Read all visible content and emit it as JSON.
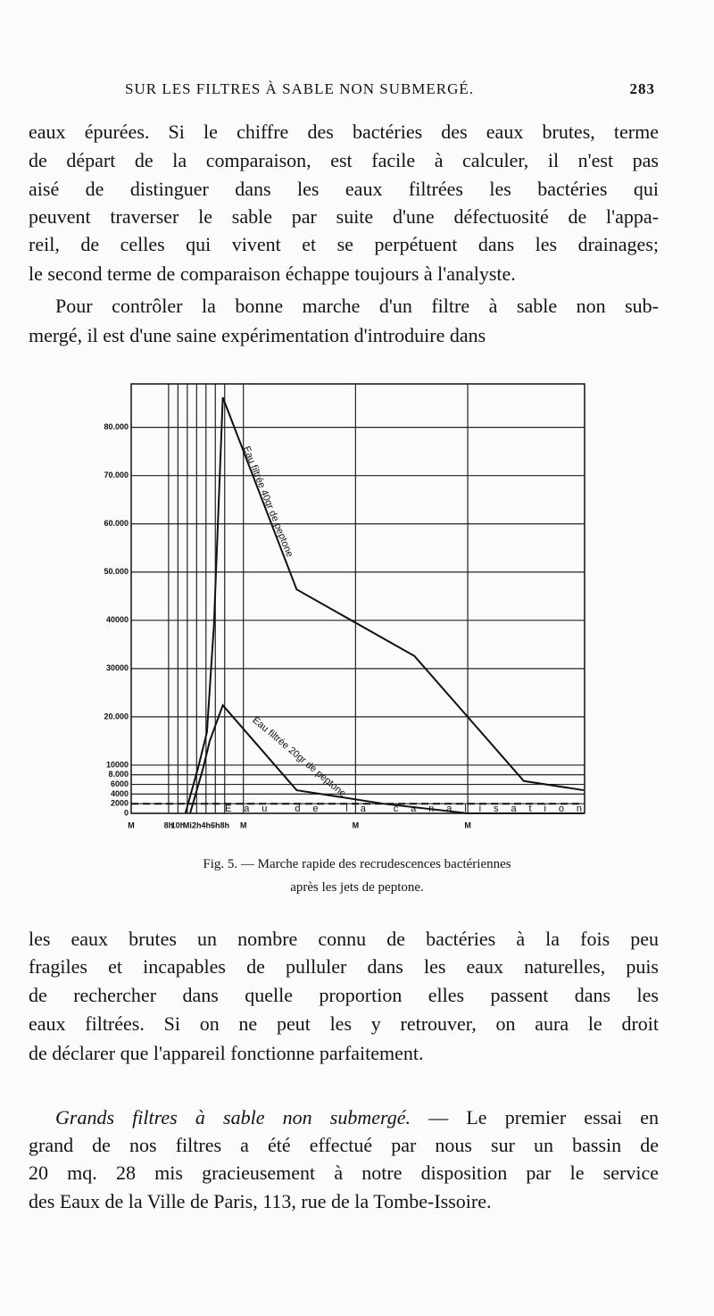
{
  "header": {
    "running_title": "SUR LES FILTRES À SABLE NON SUBMERGÉ.",
    "page_number": "283"
  },
  "paragraph_1": {
    "lines": [
      "eaux épurées. Si le chiffre des bactéries des eaux brutes, terme",
      "de départ de la comparaison, est facile à calculer, il n'est pas",
      "aisé de distinguer dans les eaux filtrées les bactéries qui",
      "peuvent traverser le sable par suite d'une défectuosité de l'appa-",
      "reil, de celles qui vivent et se perpétuent dans les drainages;",
      "le second terme de comparaison échappe toujours à l'analyste."
    ]
  },
  "paragraph_2": {
    "lines": [
      "Pour contrôler la bonne marche d'un filtre à sable non sub-",
      "mergé, il est d'une saine expérimentation d'introduire dans"
    ]
  },
  "chart_data": {
    "type": "line",
    "xlim": [
      0,
      97
    ],
    "xticks": [
      {
        "value": 0,
        "label": "M"
      },
      {
        "value": 8,
        "label": "8h"
      },
      {
        "value": 10,
        "label": "10h"
      },
      {
        "value": 12,
        "label": "Mi"
      },
      {
        "value": 14,
        "label": "2h"
      },
      {
        "value": 16,
        "label": "4h"
      },
      {
        "value": 18,
        "label": "6h"
      },
      {
        "value": 20,
        "label": "8h"
      },
      {
        "value": 24,
        "label": "M"
      },
      {
        "value": 48,
        "label": "M"
      },
      {
        "value": 72,
        "label": "M"
      }
    ],
    "ylim": [
      0,
      89000
    ],
    "yticks": [
      0,
      2000,
      4000,
      6000,
      {
        "value": 8000,
        "label": "8.000"
      },
      10000,
      {
        "value": 20000,
        "label": "20.000"
      },
      30000,
      40000,
      {
        "value": 50000,
        "label": "50.000"
      },
      {
        "value": 60000,
        "label": "60.000"
      },
      {
        "value": 70000,
        "label": "70.000"
      },
      {
        "value": 80000,
        "label": "80.000"
      }
    ],
    "grid": true,
    "series": [
      {
        "name": "Eau filtrée 40gr de peptone",
        "color": "#111111",
        "dashed": false,
        "x": [
          11.6,
          14.3,
          16.2,
          17.7,
          19.6,
          35.4,
          60.6,
          84,
          96.8
        ],
        "values": [
          0,
          9400,
          16800,
          39000,
          86200,
          46400,
          32600,
          6700,
          4800
        ]
      },
      {
        "name": "Eau filtrée 20gr de peptone",
        "color": "#111111",
        "dashed": false,
        "x": [
          12.6,
          15.4,
          16.8,
          19.6,
          35.4,
          53.9,
          72,
          96.8
        ],
        "values": [
          0,
          9400,
          15000,
          22400,
          4800,
          2000,
          0,
          0
        ]
      },
      {
        "name": "Eau de la canalisation",
        "color": "#111111",
        "dashed": true,
        "x": [
          0,
          96.8
        ],
        "values": [
          2000,
          2000
        ]
      }
    ]
  },
  "figure_caption": {
    "lines": [
      "Fig. 5. — Marche rapide des recrudescences bactériennes",
      "après les jets de peptone."
    ]
  },
  "paragraph_3": {
    "lines": [
      "les eaux brutes un nombre connu de bactéries à la fois peu",
      "fragiles et incapables de pulluler dans les eaux naturelles, puis",
      "de rechercher dans quelle proportion elles passent dans les",
      "eaux filtrées. Si on ne peut les y retrouver, on aura le droit",
      "de déclarer que l'appareil fonctionne parfaitement."
    ]
  },
  "paragraph_4": {
    "heading": "Grands filtres à sable non submergé.",
    "lines": [
      "— Le premier essai en",
      "grand de nos filtres a été effectué par nous sur un bassin de",
      "20 mq. 28 mis gracieusement à notre disposition par le service",
      "des Eaux de la Ville de Paris, 113, rue de la Tombe-Issoire."
    ]
  }
}
